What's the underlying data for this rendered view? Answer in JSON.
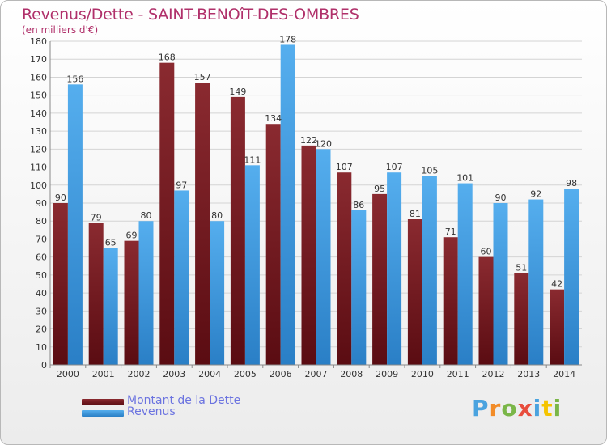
{
  "title": "Revenus/Dette - SAINT-BENOîT-DES-OMBRES",
  "subtitle": "(en milliers d'€)",
  "chart_data": {
    "type": "bar",
    "categories": [
      "2000",
      "2001",
      "2002",
      "2003",
      "2004",
      "2005",
      "2006",
      "2007",
      "2008",
      "2009",
      "2010",
      "2011",
      "2012",
      "2013",
      "2014"
    ],
    "series": [
      {
        "name": "Montant de la Dette",
        "color": "#7a1c22",
        "values": [
          90,
          79,
          69,
          168,
          157,
          149,
          134,
          122,
          107,
          95,
          81,
          71,
          60,
          51,
          42
        ]
      },
      {
        "name": "Revenus",
        "color": "#3f9ae0",
        "values": [
          156,
          65,
          80,
          97,
          80,
          111,
          178,
          120,
          86,
          107,
          105,
          101,
          90,
          92,
          98
        ]
      }
    ],
    "ylim": [
      0,
      180
    ],
    "yticks": [
      0,
      10,
      20,
      30,
      40,
      50,
      60,
      70,
      80,
      90,
      100,
      110,
      120,
      130,
      140,
      150,
      160,
      170,
      180
    ],
    "grid": true,
    "legend_position": "bottom-left"
  },
  "logo": {
    "letters": [
      "P",
      "r",
      "o",
      "x",
      "i",
      "t",
      "i"
    ],
    "colors": [
      "#4aa3df",
      "#f28c28",
      "#7ab648",
      "#e84d3d",
      "#4aa3df",
      "#f5c400",
      "#7ab648"
    ]
  }
}
